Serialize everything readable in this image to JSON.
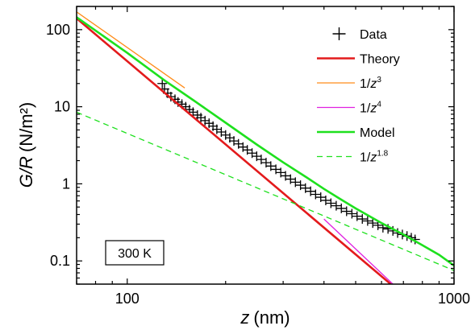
{
  "chart_data": {
    "type": "line",
    "xlabel_var": "z",
    "xlabel_unit": "(nm)",
    "ylabel_var": "G/R",
    "ylabel_unit": "(N/m²)",
    "xscale": "log",
    "yscale": "log",
    "xlim": [
      70,
      1000
    ],
    "ylim": [
      0.05,
      200
    ],
    "x_ticks": [
      {
        "value": 100,
        "label": "100"
      },
      {
        "value": 1000,
        "label": "1000"
      }
    ],
    "y_ticks": [
      {
        "value": 0.1,
        "label": "0.1"
      },
      {
        "value": 1,
        "label": "1"
      },
      {
        "value": 10,
        "label": "10"
      },
      {
        "value": 100,
        "label": "100"
      }
    ],
    "annotation": "300 K",
    "legend_position": "top-right",
    "series": [
      {
        "name": "Data",
        "sup": "",
        "style": "markers",
        "color": "#000000",
        "x": [
          128,
          130,
          133,
          136,
          140,
          143,
          147,
          151,
          155,
          159,
          164,
          168,
          173,
          178,
          183,
          188,
          194,
          200,
          206,
          212,
          219,
          226,
          233,
          241,
          249,
          257,
          266,
          275,
          285,
          295,
          305,
          316,
          327,
          339,
          351,
          364,
          377,
          391,
          405,
          420,
          436,
          452,
          469,
          487,
          505,
          524,
          544,
          564,
          585,
          606,
          628,
          650,
          672,
          695,
          718,
          740,
          760
        ],
        "y": [
          20,
          17,
          15,
          13.5,
          12.5,
          11.5,
          10.8,
          10,
          9.2,
          8.5,
          7.8,
          7.2,
          6.6,
          6.1,
          5.6,
          5.1,
          4.7,
          4.3,
          3.95,
          3.6,
          3.3,
          3.0,
          2.75,
          2.5,
          2.28,
          2.07,
          1.88,
          1.7,
          1.54,
          1.4,
          1.27,
          1.15,
          1.05,
          0.96,
          0.88,
          0.8,
          0.73,
          0.67,
          0.61,
          0.56,
          0.52,
          0.48,
          0.44,
          0.41,
          0.38,
          0.35,
          0.33,
          0.31,
          0.29,
          0.27,
          0.26,
          0.245,
          0.23,
          0.22,
          0.21,
          0.2,
          0.19
        ]
      },
      {
        "name": "Theory",
        "sup": "",
        "style": "solid",
        "color": "#e31a1c",
        "x": [
          70,
          640
        ],
        "y": [
          140,
          0.05
        ]
      },
      {
        "name": "1/z",
        "sup": "3",
        "style": "solid",
        "color": "#ff8c1a",
        "x": [
          70,
          150
        ],
        "y": [
          170,
          17.5
        ]
      },
      {
        "name": "1/z",
        "sup": "4",
        "style": "solid",
        "color": "#e020e0",
        "x": [
          400,
          650
        ],
        "y": [
          0.35,
          0.05
        ]
      },
      {
        "name": "Model",
        "sup": "",
        "style": "solid",
        "color": "#1ee01e",
        "x": [
          70,
          100,
          130,
          160,
          200,
          250,
          300,
          350,
          400,
          450,
          500,
          600,
          700,
          800,
          900,
          1000
        ],
        "y": [
          145,
          50,
          22,
          12,
          6.2,
          3.2,
          1.9,
          1.25,
          0.86,
          0.63,
          0.48,
          0.31,
          0.22,
          0.16,
          0.12,
          0.087
        ]
      },
      {
        "name": "1/z",
        "sup": "1.8",
        "style": "dashed",
        "color": "#1ee01e",
        "x": [
          70,
          1000
        ],
        "y": [
          8.5,
          0.075
        ]
      }
    ]
  }
}
